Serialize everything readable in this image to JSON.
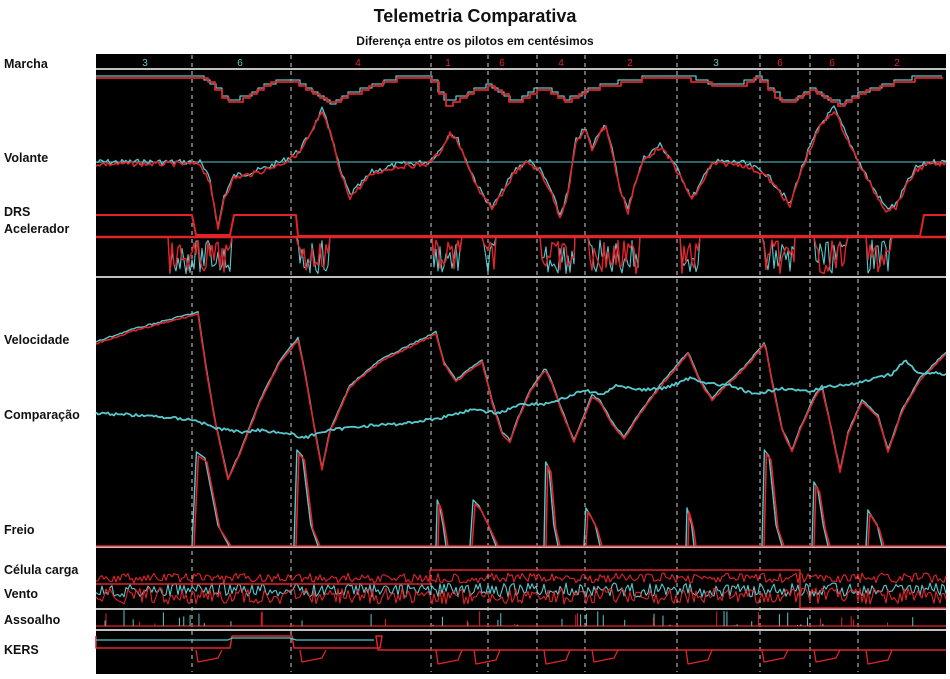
{
  "header": {
    "title": "Telemetria Comparativa",
    "subtitle": "Diferença entre os pilotos em centésimos"
  },
  "colors": {
    "background": "#000000",
    "driver_a": "#e0242a",
    "driver_b": "#58c8cc",
    "separator": "#ffffff",
    "sector_marker": "#cfcfcf"
  },
  "chart_data": {
    "type": "line",
    "title": "Telemetria Comparativa",
    "subtitle": "Diferença entre os pilotos em centésimos",
    "grid": false,
    "channels": [
      {
        "label": "Marcha"
      },
      {
        "label": "Volante"
      },
      {
        "label": "DRS"
      },
      {
        "label": "Acelerador"
      },
      {
        "label": "Velocidade"
      },
      {
        "label": "Comparação"
      },
      {
        "label": "Freio"
      },
      {
        "label": "Célula carga"
      },
      {
        "label": "Vento"
      },
      {
        "label": "Assoalho"
      },
      {
        "label": "KERS"
      }
    ],
    "gear_labels": [
      "3",
      "6",
      "4",
      "1",
      "6",
      "4",
      "2",
      "3",
      "6",
      "6",
      "2"
    ]
  }
}
